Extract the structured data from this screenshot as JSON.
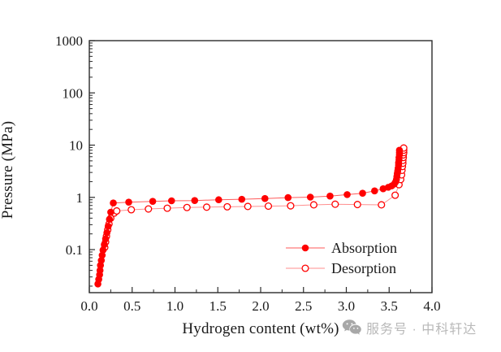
{
  "figure": {
    "background": "#ffffff"
  },
  "chart_data": {
    "type": "line",
    "title": "",
    "xlabel": "Hydrogen content (wt%)",
    "ylabel": "Pressure (MPa)",
    "grid": false,
    "legend_position": "inside-bottom-right",
    "x_axis": {
      "min": 0.0,
      "max": 4.0,
      "major_ticks": [
        0.0,
        0.5,
        1.0,
        1.5,
        2.0,
        2.5,
        3.0,
        3.5,
        4.0
      ],
      "tick_labels": [
        "0.0",
        "0.5",
        "1.0",
        "1.5",
        "2.0",
        "2.5",
        "3.0",
        "3.5",
        "4.0"
      ],
      "minor_step": 0.25
    },
    "y_axis": {
      "scale": "log",
      "min": 0.015,
      "max": 1000,
      "major_ticks": [
        0.1,
        1,
        10,
        100,
        1000
      ],
      "tick_labels": [
        "0.1",
        "1",
        "10",
        "100",
        "1000"
      ]
    },
    "series": [
      {
        "name": "Absorption",
        "marker": "filled-circle",
        "marker_color": "#ff0000",
        "line_color": "#ff5a5a",
        "points": [
          [
            0.1,
            0.022
          ],
          [
            0.11,
            0.027
          ],
          [
            0.12,
            0.033
          ],
          [
            0.125,
            0.04
          ],
          [
            0.13,
            0.05
          ],
          [
            0.14,
            0.062
          ],
          [
            0.15,
            0.078
          ],
          [
            0.16,
            0.098
          ],
          [
            0.175,
            0.125
          ],
          [
            0.19,
            0.16
          ],
          [
            0.205,
            0.21
          ],
          [
            0.22,
            0.28
          ],
          [
            0.235,
            0.38
          ],
          [
            0.25,
            0.52
          ],
          [
            0.28,
            0.78
          ],
          [
            0.46,
            0.81
          ],
          [
            0.74,
            0.84
          ],
          [
            0.96,
            0.86
          ],
          [
            1.23,
            0.87
          ],
          [
            1.51,
            0.9
          ],
          [
            1.78,
            0.92
          ],
          [
            2.05,
            0.95
          ],
          [
            2.32,
            0.99
          ],
          [
            2.58,
            1.01
          ],
          [
            2.81,
            1.06
          ],
          [
            3.01,
            1.13
          ],
          [
            3.19,
            1.2
          ],
          [
            3.33,
            1.33
          ],
          [
            3.43,
            1.46
          ],
          [
            3.49,
            1.56
          ],
          [
            3.53,
            1.66
          ],
          [
            3.56,
            1.8
          ],
          [
            3.575,
            1.97
          ],
          [
            3.585,
            2.2
          ],
          [
            3.59,
            2.5
          ],
          [
            3.595,
            2.85
          ],
          [
            3.6,
            3.2
          ],
          [
            3.605,
            3.6
          ],
          [
            3.61,
            4.1
          ],
          [
            3.61,
            4.6
          ],
          [
            3.615,
            5.2
          ],
          [
            3.615,
            5.8
          ],
          [
            3.62,
            6.5
          ],
          [
            3.62,
            7.2
          ],
          [
            3.62,
            8.0
          ]
        ]
      },
      {
        "name": "Desorption",
        "marker": "open-circle",
        "marker_color": "#ff0000",
        "line_color": "#ff8f8f",
        "points": [
          [
            0.18,
            0.11
          ],
          [
            0.19,
            0.14
          ],
          [
            0.2,
            0.18
          ],
          [
            0.215,
            0.24
          ],
          [
            0.23,
            0.31
          ],
          [
            0.25,
            0.4
          ],
          [
            0.29,
            0.5
          ],
          [
            0.32,
            0.55
          ],
          [
            0.49,
            0.58
          ],
          [
            0.69,
            0.6
          ],
          [
            0.91,
            0.62
          ],
          [
            1.14,
            0.64
          ],
          [
            1.37,
            0.65
          ],
          [
            1.61,
            0.66
          ],
          [
            1.85,
            0.67
          ],
          [
            2.09,
            0.68
          ],
          [
            2.35,
            0.69
          ],
          [
            2.62,
            0.72
          ],
          [
            2.87,
            0.74
          ],
          [
            3.13,
            0.73
          ],
          [
            3.41,
            0.72
          ],
          [
            3.57,
            1.1
          ],
          [
            3.615,
            1.75
          ],
          [
            3.635,
            2.2
          ],
          [
            3.645,
            2.7
          ],
          [
            3.65,
            3.3
          ],
          [
            3.655,
            3.9
          ],
          [
            3.66,
            4.5
          ],
          [
            3.66,
            5.1
          ],
          [
            3.665,
            5.8
          ],
          [
            3.665,
            6.5
          ],
          [
            3.67,
            7.2
          ],
          [
            3.67,
            8.0
          ],
          [
            3.67,
            8.8
          ]
        ]
      }
    ]
  },
  "legend": {
    "items": [
      {
        "label": "Absorption",
        "marker": "filled-circle"
      },
      {
        "label": "Desorption",
        "marker": "open-circle"
      }
    ]
  },
  "watermark": {
    "icon": "wechat-icon",
    "text": "服务号 · 中科轩达",
    "color": "#b9b9b9"
  }
}
